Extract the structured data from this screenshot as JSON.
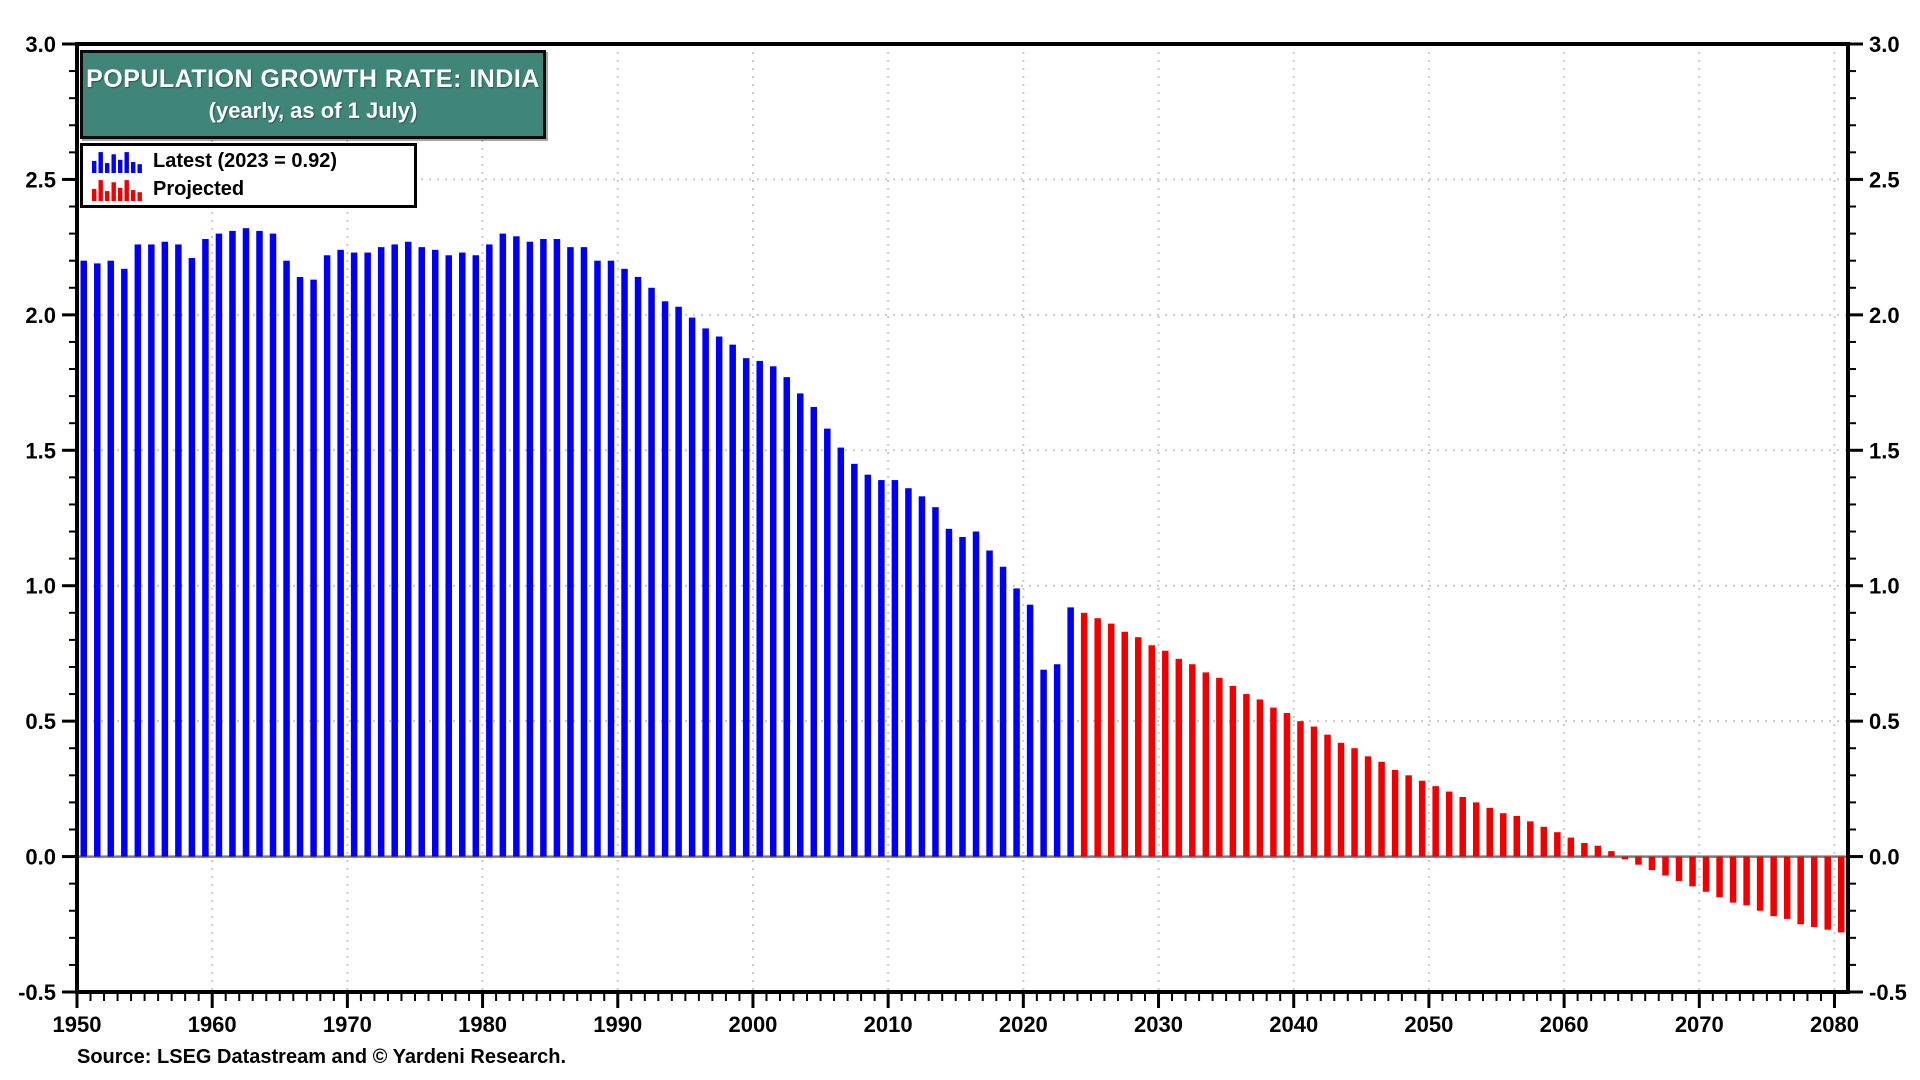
{
  "chart_data": {
    "type": "bar",
    "title": "POPULATION GROWTH RATE: INDIA",
    "subtitle": "(yearly, as of 1 July)",
    "source": "Source: LSEG Datastream and © Yardeni Research.",
    "legend": [
      {
        "id": "latest",
        "label": "Latest (2023 = 0.92)",
        "color": "#0000EE"
      },
      {
        "id": "projected",
        "label": "Projected",
        "color": "#EE0000"
      }
    ],
    "x_axis": {
      "min": 1950,
      "max": 2081,
      "decade_ticks": [
        1950,
        1960,
        1970,
        1980,
        1990,
        2000,
        2010,
        2020,
        2030,
        2040,
        2050,
        2060,
        2070,
        2080
      ],
      "tick_labels": [
        "1950",
        "1960",
        "1970",
        "1980",
        "1990",
        "2000",
        "2010",
        "2020",
        "2030",
        "2040",
        "2050",
        "2060",
        "2070",
        "2080"
      ],
      "minor_tick_step": 1,
      "grid": true
    },
    "y_axis": {
      "min": -0.5,
      "max": 3.0,
      "major_ticks": [
        3.0,
        2.5,
        2.0,
        1.5,
        1.0,
        0.5,
        0.0,
        -0.5
      ],
      "tick_labels": [
        "3.0",
        "2.5",
        "2.0",
        "1.5",
        "1.0",
        "0.5",
        "0.0",
        "-0.5"
      ],
      "minor_tick_step": 0.1,
      "grid": true,
      "labels_on_both_sides": true
    },
    "zero_line": 0.0,
    "series": [
      {
        "name": "Latest (2023 = 0.92)",
        "color": "#0000EE",
        "start_year": 1950,
        "end_year": 2023,
        "values": [
          2.2,
          2.19,
          2.2,
          2.17,
          2.26,
          2.26,
          2.27,
          2.26,
          2.21,
          2.28,
          2.3,
          2.31,
          2.32,
          2.31,
          2.3,
          2.2,
          2.14,
          2.13,
          2.22,
          2.24,
          2.23,
          2.23,
          2.25,
          2.26,
          2.27,
          2.25,
          2.24,
          2.22,
          2.23,
          2.22,
          2.26,
          2.3,
          2.29,
          2.27,
          2.28,
          2.28,
          2.25,
          2.25,
          2.2,
          2.2,
          2.17,
          2.14,
          2.1,
          2.05,
          2.03,
          1.99,
          1.95,
          1.92,
          1.89,
          1.84,
          1.83,
          1.81,
          1.77,
          1.71,
          1.66,
          1.58,
          1.51,
          1.45,
          1.41,
          1.39,
          1.39,
          1.36,
          1.33,
          1.29,
          1.21,
          1.18,
          1.2,
          1.13,
          1.07,
          0.99,
          0.93,
          0.69,
          0.71,
          0.92
        ]
      },
      {
        "name": "Projected",
        "color": "#EE0000",
        "start_year": 2024,
        "end_year": 2080,
        "values": [
          0.9,
          0.88,
          0.86,
          0.83,
          0.81,
          0.78,
          0.76,
          0.73,
          0.71,
          0.68,
          0.66,
          0.63,
          0.6,
          0.58,
          0.55,
          0.53,
          0.5,
          0.48,
          0.45,
          0.42,
          0.4,
          0.37,
          0.35,
          0.32,
          0.3,
          0.28,
          0.26,
          0.24,
          0.22,
          0.2,
          0.18,
          0.16,
          0.15,
          0.13,
          0.11,
          0.09,
          0.07,
          0.05,
          0.04,
          0.02,
          -0.01,
          -0.03,
          -0.05,
          -0.07,
          -0.09,
          -0.11,
          -0.13,
          -0.15,
          -0.17,
          -0.18,
          -0.2,
          -0.22,
          -0.23,
          -0.25,
          -0.26,
          -0.27,
          -0.28
        ]
      }
    ],
    "colors": {
      "title_box_fill": "#3F8578",
      "title_text": "#FFFFFF",
      "gridline": "#C9C9C9",
      "zero_line": "#7A7A7A",
      "axis_frame": "#000000",
      "tick_label": "#000000"
    },
    "legend_swatch_bar_heights": [
      0.55,
      0.95,
      0.45,
      0.85,
      0.6,
      0.95,
      0.5,
      0.4
    ]
  }
}
